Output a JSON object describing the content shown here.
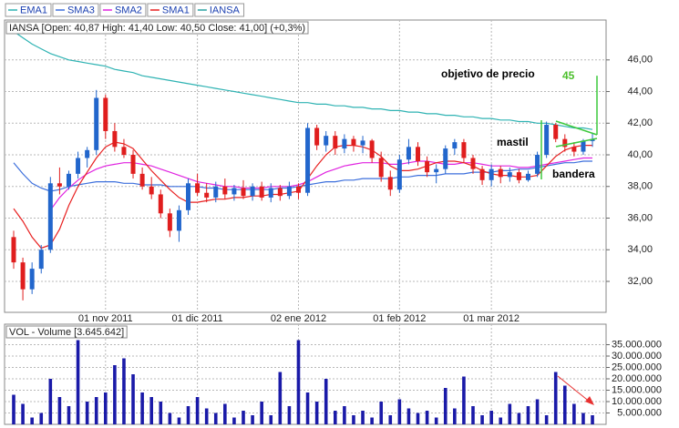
{
  "chart_data": [
    {
      "type": "candlestick",
      "info_label": "IANSA [Open: 40,87  High: 41,40  Low: 40,50  Close: 41,00] (+0,3%)",
      "annotations": {
        "target_text": "objetivo de precio",
        "mast_text": "mastil",
        "flag_text": "bandera"
      },
      "target_price": 45,
      "categories": [
        null,
        null,
        null,
        null,
        null,
        null,
        null,
        null,
        null,
        null,
        "01 nov 2011",
        null,
        null,
        null,
        null,
        null,
        null,
        null,
        null,
        null,
        "01 dic 2011",
        null,
        null,
        null,
        null,
        null,
        null,
        null,
        null,
        null,
        null,
        "02 ene 2012",
        null,
        null,
        null,
        null,
        null,
        null,
        null,
        null,
        null,
        null,
        "01 feb 2012",
        null,
        null,
        null,
        null,
        null,
        null,
        null,
        null,
        null,
        "01 mar 2012",
        null,
        null,
        null,
        null,
        null,
        null,
        null,
        null,
        null,
        null,
        null
      ],
      "ohlc": {
        "name": "IANSA",
        "color": "#2aa3a3",
        "up_color": "#2266cc",
        "down_color": "#e01e1e",
        "open": [
          34.8,
          33.2,
          31.5,
          32.8,
          34.0,
          38.2,
          38.0,
          38.8,
          39.8,
          40.3,
          43.6,
          41.5,
          40.5,
          40.0,
          38.8,
          38.0,
          37.5,
          36.3,
          35.2,
          36.5,
          38.2,
          37.6,
          37.3,
          38.0,
          37.5,
          37.9,
          37.4,
          38.0,
          37.3,
          37.9,
          37.4,
          38.0,
          37.6,
          41.7,
          40.6,
          41.2,
          40.4,
          41.0,
          40.6,
          40.9,
          39.8,
          38.6,
          37.8,
          39.7,
          40.5,
          39.6,
          38.9,
          39.1,
          40.4,
          40.8,
          39.8,
          39.1,
          38.4,
          39.1,
          38.6,
          38.9,
          38.4,
          38.8,
          40.0,
          41.9,
          41.0,
          40.5,
          40.2,
          40.87
        ],
        "high": [
          35.2,
          33.5,
          33.2,
          34.3,
          38.6,
          39.2,
          39.0,
          40.2,
          40.5,
          44.1,
          43.8,
          42.0,
          41.0,
          40.3,
          39.2,
          38.6,
          37.8,
          36.6,
          36.8,
          38.5,
          38.8,
          38.2,
          38.3,
          38.5,
          38.1,
          38.4,
          38.2,
          38.3,
          38.2,
          38.1,
          38.3,
          38.2,
          42.0,
          41.9,
          41.5,
          41.5,
          41.3,
          41.2,
          41.2,
          41.0,
          40.2,
          39.0,
          40.0,
          41.0,
          40.8,
          39.9,
          39.4,
          40.6,
          41.0,
          41.0,
          40.0,
          39.3,
          39.4,
          39.3,
          39.2,
          39.1,
          39.0,
          40.2,
          42.1,
          42.0,
          41.3,
          40.8,
          41.0,
          41.4
        ],
        "low": [
          32.8,
          30.8,
          31.2,
          32.5,
          33.8,
          37.5,
          37.8,
          38.5,
          39.2,
          40.0,
          41.0,
          40.2,
          39.8,
          38.5,
          37.8,
          37.2,
          36.0,
          34.8,
          34.5,
          36.2,
          37.4,
          37.0,
          37.0,
          37.2,
          37.1,
          37.2,
          37.1,
          37.1,
          37.0,
          37.1,
          37.2,
          37.2,
          37.4,
          40.3,
          40.2,
          40.0,
          40.1,
          40.2,
          40.1,
          39.5,
          38.3,
          37.4,
          37.6,
          39.4,
          39.3,
          38.6,
          38.2,
          38.8,
          40.0,
          39.5,
          38.8,
          38.1,
          38.0,
          38.2,
          38.3,
          38.2,
          38.3,
          38.6,
          39.8,
          40.8,
          40.2,
          39.9,
          40.0,
          40.5
        ],
        "close": [
          33.2,
          31.5,
          32.8,
          34.0,
          38.2,
          38.0,
          38.8,
          39.8,
          40.3,
          43.6,
          41.5,
          40.5,
          40.0,
          38.8,
          38.0,
          37.5,
          36.3,
          35.2,
          36.5,
          38.2,
          37.6,
          37.3,
          38.0,
          37.5,
          37.9,
          37.4,
          38.0,
          37.3,
          37.9,
          37.4,
          38.0,
          37.6,
          41.7,
          40.6,
          41.2,
          40.4,
          41.0,
          40.6,
          40.9,
          39.8,
          38.6,
          37.8,
          39.7,
          40.5,
          39.6,
          38.9,
          39.1,
          40.4,
          40.8,
          39.8,
          39.1,
          38.4,
          39.1,
          38.6,
          38.9,
          38.4,
          38.8,
          40.0,
          41.9,
          41.0,
          40.5,
          40.2,
          40.9,
          41.0
        ]
      },
      "series": [
        {
          "name": "EMA1",
          "color": "#2fb3b3",
          "values": [
            47.8,
            47.4,
            47.0,
            46.7,
            46.4,
            46.2,
            46.0,
            45.9,
            45.8,
            45.7,
            45.6,
            45.4,
            45.3,
            45.2,
            45.0,
            44.9,
            44.8,
            44.7,
            44.6,
            44.5,
            44.4,
            44.3,
            44.2,
            44.1,
            44.0,
            43.9,
            43.8,
            43.7,
            43.6,
            43.5,
            43.4,
            43.3,
            43.3,
            43.2,
            43.2,
            43.1,
            43.1,
            43.0,
            43.0,
            42.9,
            42.9,
            42.8,
            42.8,
            42.7,
            42.7,
            42.6,
            42.6,
            42.5,
            42.5,
            42.4,
            42.4,
            42.3,
            42.3,
            42.2,
            42.2,
            42.1,
            42.1,
            42.0,
            42.0,
            41.9,
            41.8,
            41.7,
            41.7,
            41.6
          ]
        },
        {
          "name": "SMA3",
          "color": "#3c6fdc",
          "values": [
            39.5,
            38.8,
            38.2,
            37.9,
            37.7,
            37.8,
            38.0,
            38.1,
            38.2,
            38.3,
            38.3,
            38.3,
            38.2,
            38.2,
            38.1,
            38.1,
            38.1,
            38.0,
            38.0,
            38.0,
            38.0,
            37.9,
            37.9,
            37.8,
            37.8,
            37.8,
            37.8,
            37.8,
            37.8,
            37.9,
            37.9,
            38.0,
            38.1,
            38.2,
            38.3,
            38.3,
            38.4,
            38.4,
            38.5,
            38.5,
            38.5,
            38.5,
            38.6,
            38.6,
            38.7,
            38.7,
            38.7,
            38.8,
            38.8,
            38.8,
            38.9,
            38.9,
            38.9,
            39.0,
            39.0,
            39.1,
            39.1,
            39.2,
            39.3,
            39.4,
            39.5,
            39.5,
            39.6,
            39.6
          ]
        },
        {
          "name": "SMA2",
          "color": "#e024e0",
          "values": [
            null,
            null,
            null,
            null,
            36.5,
            37.3,
            37.9,
            38.4,
            38.8,
            39.1,
            39.3,
            39.4,
            39.5,
            39.5,
            39.4,
            39.3,
            39.1,
            38.9,
            38.7,
            38.5,
            38.3,
            38.2,
            38.1,
            38.0,
            38.0,
            37.9,
            37.9,
            37.9,
            38.0,
            38.0,
            38.0,
            38.1,
            38.3,
            38.6,
            38.9,
            39.1,
            39.3,
            39.4,
            39.5,
            39.5,
            39.5,
            39.4,
            39.4,
            39.5,
            39.6,
            39.6,
            39.5,
            39.4,
            39.4,
            39.5,
            39.5,
            39.4,
            39.3,
            39.3,
            39.3,
            39.2,
            39.2,
            39.3,
            39.4,
            39.5,
            39.6,
            39.7,
            39.8,
            39.8
          ]
        },
        {
          "name": "SMA1",
          "color": "#e82020",
          "values": [
            36.6,
            35.8,
            34.8,
            34.1,
            34.3,
            35.3,
            36.8,
            38.0,
            38.9,
            39.8,
            40.5,
            40.8,
            40.7,
            40.4,
            39.7,
            39.0,
            38.4,
            37.8,
            37.3,
            37.0,
            37.0,
            37.1,
            37.2,
            37.2,
            37.3,
            37.3,
            37.4,
            37.4,
            37.5,
            37.5,
            37.6,
            37.7,
            38.5,
            39.3,
            40.0,
            40.5,
            40.6,
            40.6,
            40.5,
            40.3,
            39.9,
            39.3,
            39.0,
            39.0,
            39.1,
            39.3,
            39.5,
            39.6,
            39.6,
            39.5,
            39.3,
            39.0,
            38.8,
            38.7,
            38.7,
            38.6,
            38.6,
            38.7,
            39.3,
            39.9,
            40.3,
            40.5,
            40.6,
            40.6
          ]
        }
      ],
      "ylim": [
        30.1,
        47.6
      ],
      "yticks": [
        {
          "value": 32,
          "label": "32,00"
        },
        {
          "value": 34,
          "label": "34,00"
        },
        {
          "value": 36,
          "label": "36,00"
        },
        {
          "value": 38,
          "label": "38,00"
        },
        {
          "value": 40,
          "label": "40,00"
        },
        {
          "value": 42,
          "label": "42,00"
        },
        {
          "value": 44,
          "label": "44,00"
        },
        {
          "value": 46,
          "label": "46,00"
        }
      ],
      "grid": true
    },
    {
      "type": "bar",
      "title": "VOL - Volume [3.645.642]",
      "color": "#1a1aa8",
      "values": [
        13000000,
        9000000,
        3000000,
        5000000,
        20000000,
        12000000,
        8000000,
        37000000,
        10000000,
        12000000,
        14000000,
        26000000,
        29000000,
        22000000,
        14000000,
        12000000,
        10000000,
        5000000,
        3000000,
        8000000,
        12000000,
        7000000,
        5000000,
        9000000,
        3000000,
        6000000,
        4000000,
        10000000,
        4000000,
        23000000,
        8000000,
        37000000,
        14000000,
        10000000,
        20000000,
        6000000,
        8000000,
        4000000,
        6000000,
        3000000,
        10000000,
        4000000,
        11000000,
        7000000,
        5000000,
        6000000,
        3000000,
        16000000,
        7000000,
        21000000,
        8000000,
        4000000,
        6000000,
        3000000,
        9000000,
        5000000,
        8000000,
        11000000,
        4000000,
        23000000,
        17000000,
        9000000,
        5000000,
        4000000
      ],
      "ylim": [
        0,
        43600000
      ],
      "yticks": [
        {
          "value": 5000000,
          "label": "5.000.000"
        },
        {
          "value": 10000000,
          "label": "10.000.000"
        },
        {
          "value": 15000000,
          "label": "15.000.000"
        },
        {
          "value": 20000000,
          "label": "20.000.000"
        },
        {
          "value": 25000000,
          "label": "25.000.000"
        },
        {
          "value": 30000000,
          "label": "30.000.000"
        },
        {
          "value": 35000000,
          "label": "35.000.000"
        }
      ],
      "grid": true
    }
  ]
}
